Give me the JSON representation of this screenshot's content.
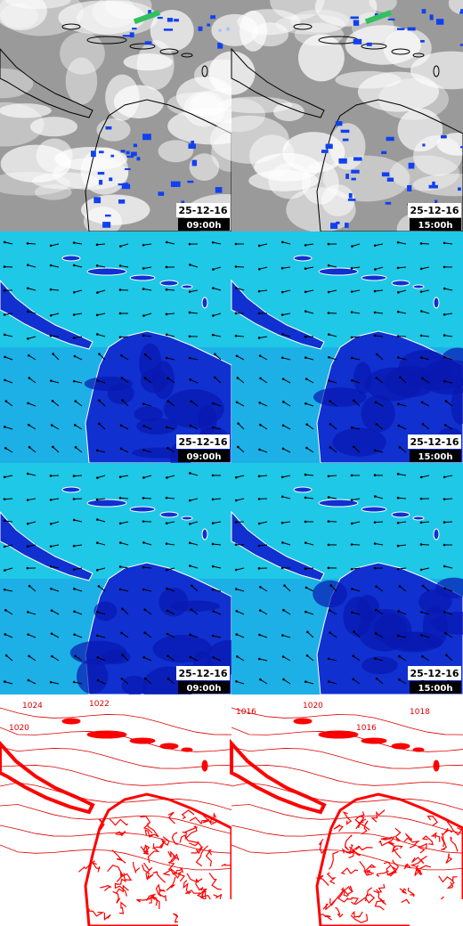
{
  "panels": [
    {
      "date": "25-12-16",
      "time": "09:00h"
    },
    {
      "date": "25-12-16",
      "time": "15:00h"
    },
    {
      "date": "25-12-16",
      "time": "09:00h"
    },
    {
      "date": "25-12-16",
      "time": "15:00h"
    },
    {
      "date": "25-12-16",
      "time": "09:00h"
    },
    {
      "date": "25-12-16",
      "time": "15:00h"
    }
  ],
  "pressure_panels": [
    {
      "labels": [
        "1024",
        "1022",
        "1020"
      ]
    },
    {
      "labels": [
        "1016",
        "1020",
        "1018",
        "1016"
      ]
    }
  ]
}
